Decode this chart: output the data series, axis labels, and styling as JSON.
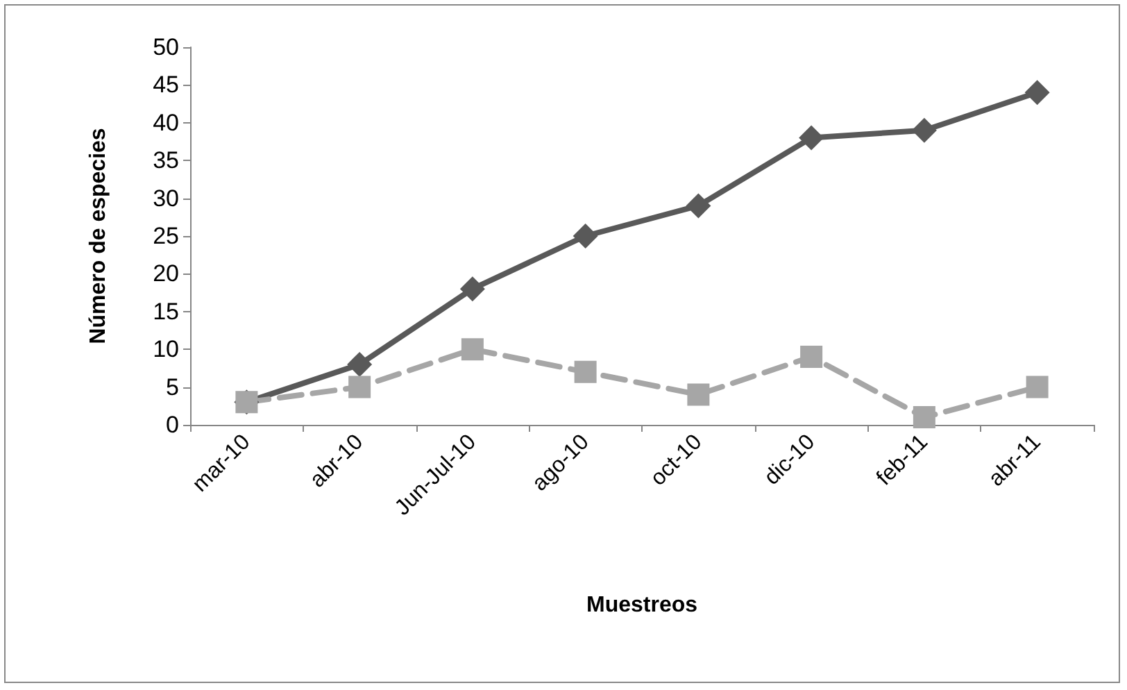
{
  "chart_data": {
    "type": "line",
    "xlabel": "Muestreos",
    "ylabel": "Número de especies",
    "categories": [
      "mar-10",
      "abr-10",
      "Jun-Jul-10",
      "ago-10",
      "oct-10",
      "dic-10",
      "feb-11",
      "abr-11"
    ],
    "series": [
      {
        "color": "#595959",
        "marker": "diamond",
        "line_style": "solid",
        "values": [
          3,
          8,
          18,
          25,
          29,
          38,
          39,
          44
        ]
      },
      {
        "color": "#a6a6a6",
        "marker": "square",
        "line_style": "dashed",
        "values": [
          3,
          5,
          10,
          7,
          4,
          9,
          1,
          5
        ]
      }
    ],
    "ylim": [
      0,
      50
    ],
    "yticks": [
      0,
      5,
      10,
      15,
      20,
      25,
      30,
      35,
      40,
      45,
      50
    ],
    "grid": false
  }
}
